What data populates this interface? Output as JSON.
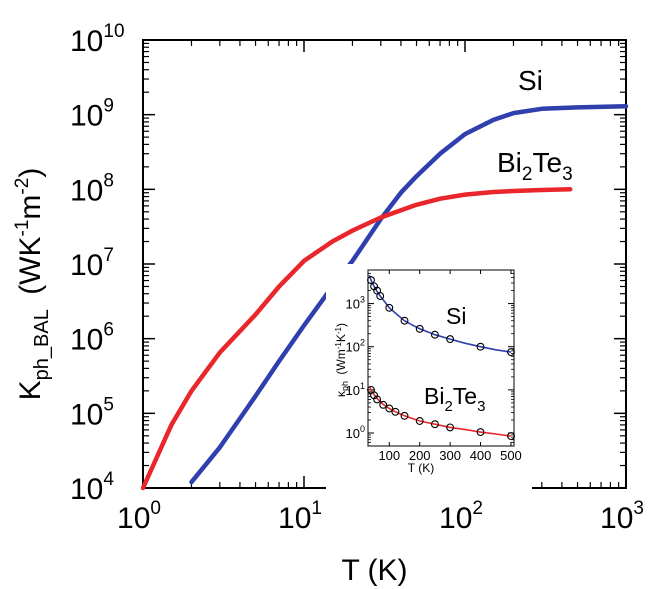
{
  "chart_data": {
    "main": {
      "type": "line",
      "xlabel": "T (K)",
      "ylabel": {
        "base": "K",
        "sub": "ph_BAL",
        "unit_prefix": "(WK",
        "unit_exp1": "-1",
        "unit_mid": "m",
        "unit_exp2": "-2",
        "unit_suffix": ")"
      },
      "xscale": "log",
      "yscale": "log",
      "xlim": [
        1,
        1000
      ],
      "ylim": [
        10000,
        10000000000
      ],
      "x_ticks": [
        {
          "value": 1,
          "base": "10",
          "exp": "0"
        },
        {
          "value": 10,
          "base": "10",
          "exp": "1"
        },
        {
          "value": 100,
          "base": "10",
          "exp": "2"
        },
        {
          "value": 1000,
          "base": "10",
          "exp": "3"
        }
      ],
      "y_ticks": [
        {
          "value": 10000,
          "base": "10",
          "exp": "4"
        },
        {
          "value": 100000,
          "base": "10",
          "exp": "5"
        },
        {
          "value": 1000000,
          "base": "10",
          "exp": "6"
        },
        {
          "value": 10000000,
          "base": "10",
          "exp": "7"
        },
        {
          "value": 100000000,
          "base": "10",
          "exp": "8"
        },
        {
          "value": 1000000000,
          "base": "10",
          "exp": "9"
        },
        {
          "value": 10000000000,
          "base": "10",
          "exp": "10"
        }
      ],
      "series": [
        {
          "label": {
            "text": "Si"
          },
          "color": "#2f3fae",
          "x": [
            2,
            3,
            5,
            7,
            10,
            15,
            20,
            30,
            40,
            50,
            70,
            100,
            150,
            200,
            300,
            500,
            1000
          ],
          "y": [
            12000,
            35000,
            170000,
            500000,
            1500000,
            5000000,
            11000000,
            40000000,
            90000000,
            150000000,
            300000000,
            550000000,
            850000000,
            1050000000,
            1200000000,
            1250000000,
            1300000000
          ]
        },
        {
          "label": {
            "text": "Bi",
            "sub": "2",
            "mid": "Te",
            "sub2": "3"
          },
          "color": "#e8262b",
          "x": [
            1,
            1.5,
            2,
            3,
            5,
            7,
            10,
            15,
            20,
            30,
            50,
            70,
            100,
            150,
            200,
            300,
            450
          ],
          "y": [
            10000,
            70000,
            200000,
            650000,
            2100000,
            5000000,
            11000000,
            20000000,
            28000000,
            42000000,
            62000000,
            75000000,
            85000000,
            92000000,
            95000000,
            98000000,
            100000000
          ]
        }
      ]
    },
    "inset": {
      "type": "scatter",
      "xlabel": "T (K)",
      "ylabel": {
        "base": "κ",
        "sub": "ph",
        "unit_prefix": "(Wm",
        "unit_exp1": "-1",
        "unit_mid": "K",
        "unit_exp2": "-1",
        "unit_suffix": ")"
      },
      "yscale": "log",
      "xlim": [
        30,
        510
      ],
      "ylim": [
        0.5,
        6000
      ],
      "x_ticks": [
        100,
        200,
        300,
        400,
        500
      ],
      "y_ticks": [
        {
          "value": 1,
          "base": "10",
          "exp": "0"
        },
        {
          "value": 10,
          "base": "10",
          "exp": "1"
        },
        {
          "value": 100,
          "base": "10",
          "exp": "2"
        },
        {
          "value": 1000,
          "base": "10",
          "exp": "3"
        }
      ],
      "series": [
        {
          "label": {
            "text": "Si"
          },
          "color": "#2f3fae",
          "points_x": [
            40,
            50,
            60,
            70,
            100,
            150,
            200,
            250,
            300,
            400,
            500
          ],
          "points_y": [
            3500,
            2500,
            2000,
            1500,
            800,
            400,
            260,
            190,
            150,
            100,
            75
          ],
          "curve_x": [
            35,
            40,
            50,
            60,
            70,
            85,
            100,
            125,
            150,
            175,
            200,
            250,
            300,
            350,
            400,
            450,
            500
          ],
          "curve_y": [
            4500,
            3500,
            2500,
            1900,
            1500,
            1100,
            800,
            560,
            400,
            320,
            260,
            190,
            150,
            120,
            100,
            85,
            75
          ]
        },
        {
          "label": {
            "text": "Bi",
            "sub": "2",
            "mid": "Te",
            "sub2": "3"
          },
          "color": "#e8262b",
          "points_x": [
            40,
            50,
            60,
            80,
            100,
            120,
            150,
            200,
            250,
            300,
            400,
            500
          ],
          "points_y": [
            10,
            7.5,
            6,
            4.5,
            3.7,
            3.1,
            2.5,
            1.9,
            1.6,
            1.35,
            1.05,
            0.85
          ],
          "curve_x": [
            35,
            40,
            50,
            60,
            80,
            100,
            120,
            150,
            200,
            250,
            300,
            350,
            400,
            450,
            500
          ],
          "curve_y": [
            12,
            10,
            7.8,
            6.3,
            4.6,
            3.7,
            3.1,
            2.5,
            1.9,
            1.6,
            1.35,
            1.2,
            1.05,
            0.95,
            0.85
          ]
        }
      ]
    }
  }
}
